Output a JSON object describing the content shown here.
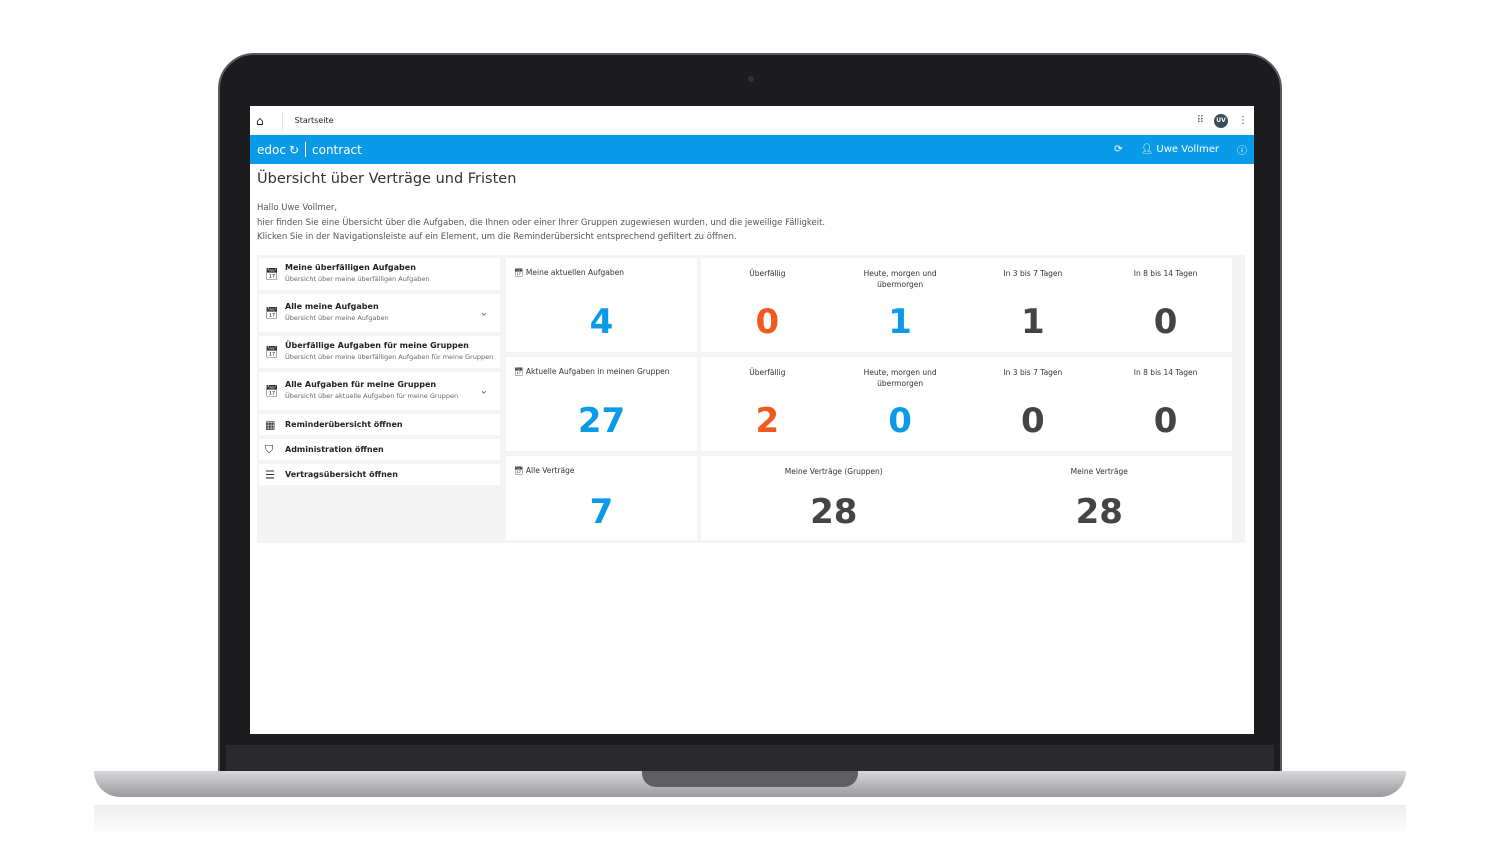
{
  "topbar": {
    "breadcrumb": "Startseite",
    "avatar": "UV"
  },
  "appbar": {
    "brand": "edoc",
    "product": "contract",
    "user": "Uwe Vollmer"
  },
  "page": {
    "title": "Übersicht über Verträge und Fristen",
    "greeting": "Hallo Uwe Vollmer,",
    "line1": "hier finden Sie eine Übersicht über die Aufgaben, die Ihnen oder einer Ihrer Gruppen zugewiesen wurden, und die jeweilige Fälligkeit.",
    "line2": "Klicken Sie in der Navigationsleiste auf ein Element, um die Reminderübersicht entsprechend gefiltert zu öffnen."
  },
  "sidebar": {
    "items": [
      {
        "title": "Meine überfälligen Aufgaben",
        "sub": "Übersicht über meine überfälligen Aufgaben"
      },
      {
        "title": "Alle meine Aufgaben",
        "sub": "Übersicht über meine Aufgaben"
      },
      {
        "title": "Überfällige Aufgaben für meine Gruppen",
        "sub": "Übersicht über meine überfälligen Aufgaben für meine Gruppen"
      },
      {
        "title": "Alle Aufgaben für meine Gruppen",
        "sub": "Übersicht über aktuelle Aufgaben für meine Gruppen"
      },
      {
        "title": "Reminderübersicht öffnen"
      },
      {
        "title": "Administration öffnen"
      },
      {
        "title": "Vertragsübersicht öffnen"
      }
    ]
  },
  "rows": [
    {
      "label": "Meine aktuellen Aufgaben",
      "value": "4",
      "cols": [
        {
          "label": "Überfällig",
          "value": "0"
        },
        {
          "label": "Heute, morgen und übermorgen",
          "value": "1"
        },
        {
          "label": "In 3 bis 7 Tagen",
          "value": "1"
        },
        {
          "label": "In 8 bis 14 Tagen",
          "value": "0"
        }
      ]
    },
    {
      "label": "Aktuelle Aufgaben in meinen Gruppen",
      "value": "27",
      "cols": [
        {
          "label": "Überfällig",
          "value": "2"
        },
        {
          "label": "Heute, morgen und übermorgen",
          "value": "0"
        },
        {
          "label": "In 3 bis 7 Tagen",
          "value": "0"
        },
        {
          "label": "In 8 bis 14 Tagen",
          "value": "0"
        }
      ]
    },
    {
      "label": "Alle Verträge",
      "value": "7",
      "cols": [
        {
          "label": "Meine Verträge (Gruppen)",
          "value": "28"
        },
        {
          "label": "Meine Verträge",
          "value": "28"
        }
      ]
    }
  ],
  "colors": {
    "accent": "#0a9be8",
    "overdue": "#f05a1e"
  }
}
